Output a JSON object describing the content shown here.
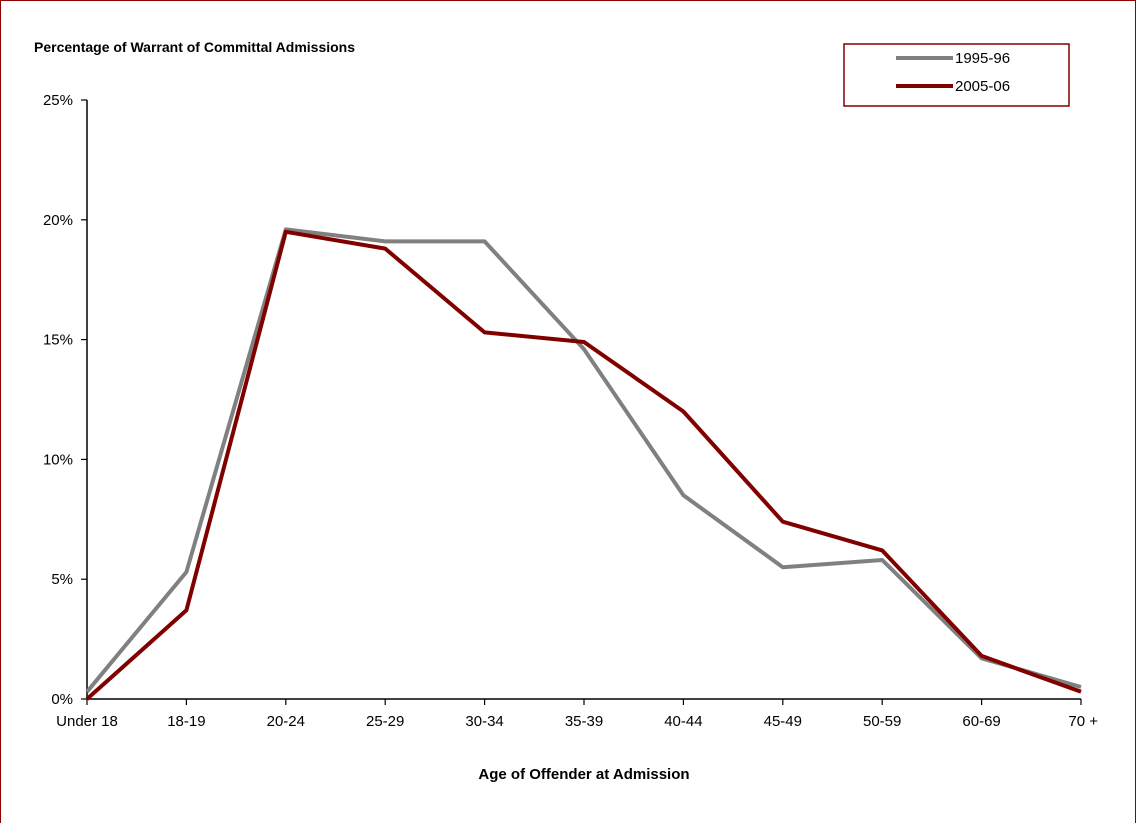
{
  "chart_data": {
    "type": "line",
    "ylabel": "Percentage of Warrant of Committal Admissions",
    "xlabel": "Age of Offender at Admission",
    "categories": [
      "Under 18",
      "18-19",
      "20-24",
      "25-29",
      "30-34",
      "35-39",
      "40-44",
      "45-49",
      "50-59",
      "60-69",
      "70 +"
    ],
    "ylim": [
      0,
      25
    ],
    "yticks": [
      "0%",
      "5%",
      "10%",
      "15%",
      "20%",
      "25%"
    ],
    "ytick_values": [
      0,
      5,
      10,
      15,
      20,
      25
    ],
    "grid": false,
    "legend_position": "top-right",
    "series": [
      {
        "name": "1995-96",
        "color": "#808080",
        "values": [
          0.3,
          5.3,
          19.6,
          19.1,
          19.1,
          14.6,
          8.5,
          5.5,
          5.8,
          1.7,
          0.5
        ]
      },
      {
        "name": "2005-06",
        "color": "#800000",
        "values": [
          0.0,
          3.7,
          19.5,
          18.8,
          15.3,
          14.9,
          12.0,
          7.4,
          6.2,
          1.8,
          0.3
        ]
      }
    ]
  }
}
